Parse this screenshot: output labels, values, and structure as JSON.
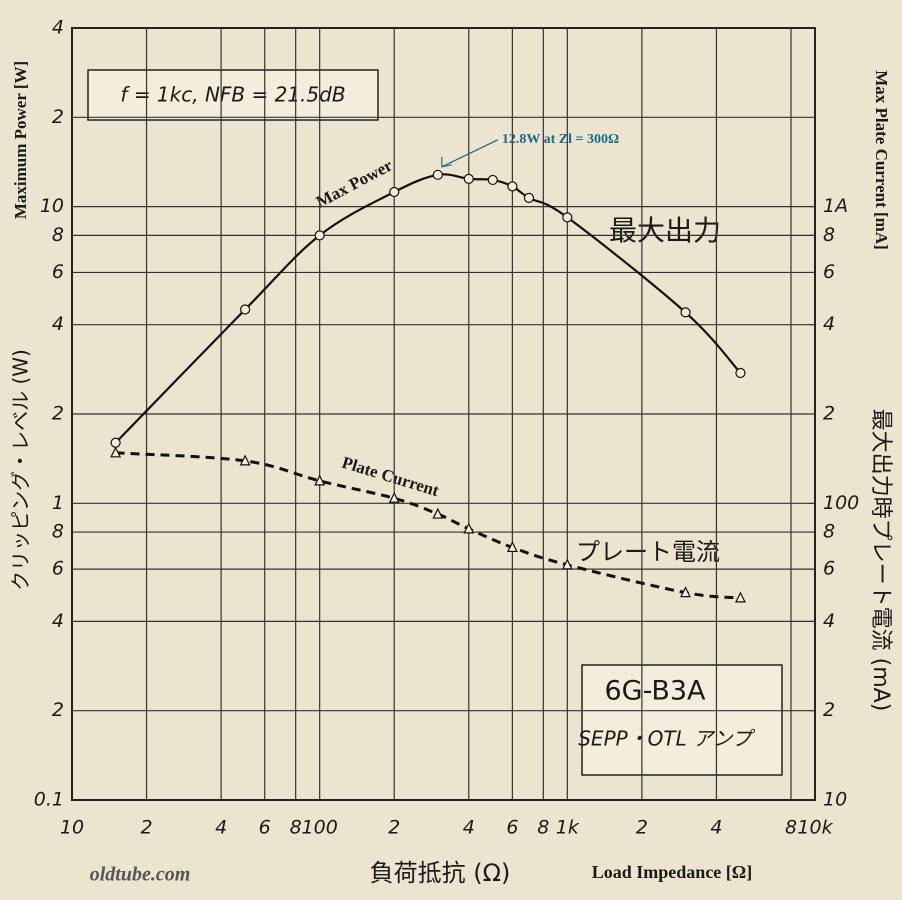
{
  "chart_data": {
    "type": "line",
    "log_x": true,
    "log_y": true,
    "grid": true,
    "annotation": "f = 1kc, NFB = 21.5dB",
    "peak_note": "12.8W at Zl = 300Ω",
    "peak": {
      "x": 300,
      "y": 12.8
    },
    "jp_power_label": "最大出力",
    "jp_current_label": "プレート電流",
    "box_title": "6G-B3A",
    "box_subtitle": "SEPP・OTL アンプ",
    "ylabel_jp": "クリッピング・レベル (W)",
    "ylabel": "Maximum Power [W]",
    "y2label_jp": "最大出力時プレート電流 (mA)",
    "y2label": "Max Plate Current [mA]",
    "xlabel_jp": "負荷抵抗 (Ω)",
    "xlabel": "Load Impedance [Ω]",
    "source": "oldtube.com",
    "xlim": [
      10,
      10000
    ],
    "xticks": [
      10,
      {
        "value": 20,
        "label": "2"
      },
      {
        "value": 40,
        "label": "4"
      },
      {
        "value": 60,
        "label": "6"
      },
      {
        "value": 80,
        "label": "8"
      },
      100,
      {
        "value": 200,
        "label": "2"
      },
      {
        "value": 400,
        "label": "4"
      },
      {
        "value": 600,
        "label": "6"
      },
      {
        "value": 800,
        "label": "8"
      },
      {
        "value": 1000,
        "label": "1k"
      },
      {
        "value": 2000,
        "label": "2"
      },
      {
        "value": 4000,
        "label": "4"
      },
      {
        "value": 8000,
        "label": "8"
      },
      {
        "value": 10000,
        "label": "10k"
      }
    ],
    "ylim": [
      0.1,
      40
    ],
    "yticks": [
      0.1,
      {
        "value": 0.2,
        "label": "2"
      },
      {
        "value": 0.4,
        "label": "4"
      },
      {
        "value": 0.6,
        "label": "6"
      },
      {
        "value": 0.8,
        "label": "8"
      },
      1,
      2,
      4,
      6,
      8,
      10,
      {
        "value": 20,
        "label": "2"
      },
      {
        "value": 40,
        "label": "4"
      }
    ],
    "y2lim": [
      10,
      4000
    ],
    "y2ticks": [
      10,
      {
        "value": 20,
        "label": "2"
      },
      {
        "value": 40,
        "label": "4"
      },
      {
        "value": 60,
        "label": "6"
      },
      {
        "value": 80,
        "label": "8"
      },
      100,
      {
        "value": 200,
        "label": "2"
      },
      {
        "value": 400,
        "label": "4"
      },
      {
        "value": 600,
        "label": "6"
      },
      {
        "value": 800,
        "label": "8"
      },
      {
        "value": 1000,
        "label": "1A"
      }
    ],
    "series": [
      {
        "name": "Max Power",
        "color": "#111111",
        "marker": "circle",
        "linestyle": "solid",
        "x": [
          15,
          50,
          100,
          200,
          300,
          400,
          500,
          600,
          700,
          1000,
          3000,
          5000
        ],
        "values": [
          1.6,
          4.5,
          8.0,
          11.2,
          12.8,
          12.4,
          12.3,
          11.7,
          10.7,
          9.2,
          4.4,
          2.75
        ]
      },
      {
        "name": "Plate Current",
        "color": "#111111",
        "marker": "triangle",
        "linestyle": "dashed",
        "axis": "y2",
        "x": [
          15,
          50,
          100,
          200,
          300,
          400,
          600,
          1000,
          3000,
          5000
        ],
        "values": [
          148,
          139,
          119,
          104,
          92,
          82,
          71,
          62,
          50,
          48
        ]
      }
    ]
  }
}
